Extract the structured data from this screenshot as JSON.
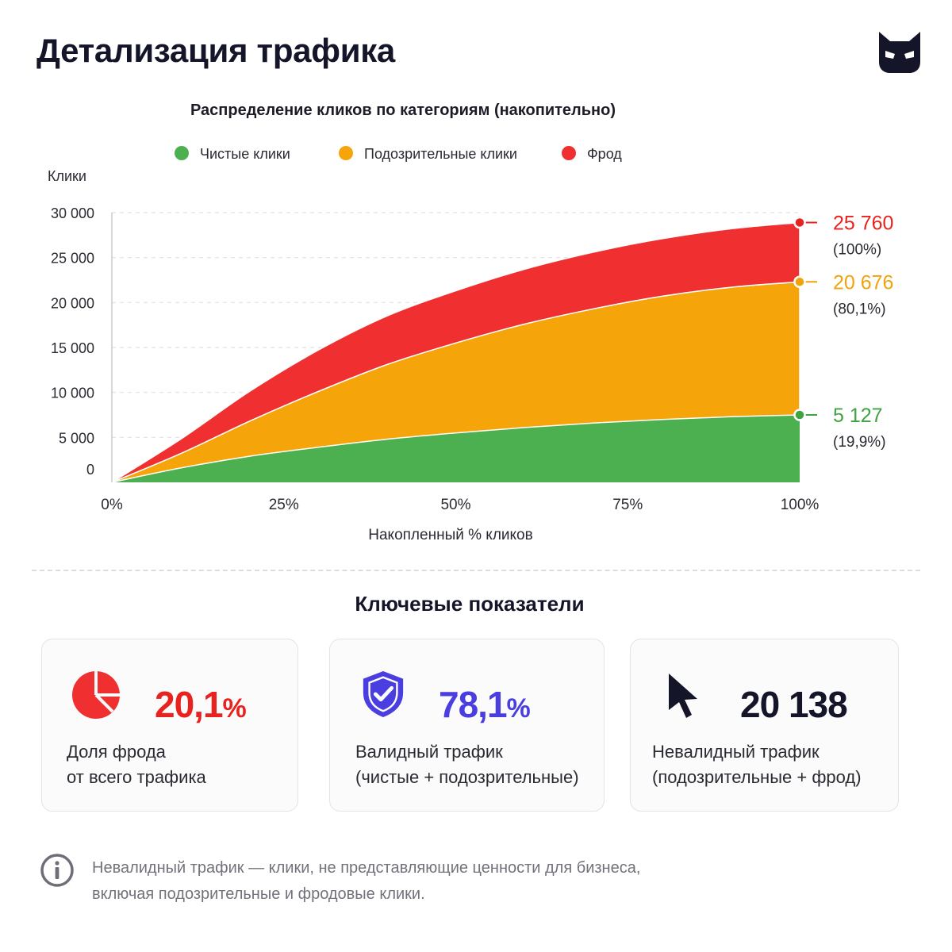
{
  "header": {
    "title": "Детализация трафика",
    "logo_icon": "owl-mask-icon"
  },
  "chart_data": {
    "type": "area",
    "stacked": true,
    "title": "Распределение кликов по категориям (накопительно)",
    "xlabel": "Накопленный % кликов",
    "ylabel": "Клики",
    "x": [
      0,
      10,
      20,
      30,
      40,
      50,
      60,
      70,
      80,
      90,
      100
    ],
    "x_ticks": [
      "0%",
      "25%",
      "50%",
      "75%",
      "100%"
    ],
    "x_tick_values": [
      0,
      25,
      50,
      75,
      100
    ],
    "y_ticks": [
      "0",
      "5 000",
      "10 000",
      "15 000",
      "20 000",
      "25 000",
      "30 000"
    ],
    "y_tick_values": [
      0,
      5000,
      10000,
      15000,
      20000,
      25000,
      30000
    ],
    "ylim": [
      0,
      30000
    ],
    "grid": true,
    "legend_position": "top",
    "series": [
      {
        "name": "Чистые клики",
        "color": "#4caf50",
        "values": [
          0,
          1600,
          2900,
          3900,
          4800,
          5500,
          6100,
          6600,
          7000,
          7300,
          7500
        ]
      },
      {
        "name": "Подозрительные клики",
        "color": "#f5a50a",
        "values": [
          0,
          1600,
          3900,
          6200,
          8300,
          10000,
          11500,
          12700,
          13700,
          14400,
          14800
        ]
      },
      {
        "name": "Фрод",
        "color": "#f03030",
        "values": [
          0,
          1600,
          3300,
          4600,
          5400,
          5800,
          6100,
          6300,
          6400,
          6500,
          6600
        ]
      }
    ],
    "annotations": [
      {
        "value": "25 760",
        "sub": "(100%)",
        "color": "#e8231f",
        "y": 28900
      },
      {
        "value": "20 676",
        "sub": "(80,1%)",
        "color": "#f0a30a",
        "y": 22300
      },
      {
        "value": "5 127",
        "sub": "(19,9%)",
        "color": "#3fa243",
        "y": 7500
      }
    ]
  },
  "kpi": {
    "title": "Ключевые показатели",
    "cards": [
      {
        "value": "20,1",
        "unit": "%",
        "color": "#e8231f",
        "line1": "Доля фрода",
        "line2": "от всего трафика",
        "icon": "pie-chart-icon"
      },
      {
        "value": "78,1",
        "unit": "%",
        "color": "#4b3ee0",
        "line1": "Валидный трафик",
        "line2": "(чистые + подозрительные)",
        "icon": "shield-check-icon"
      },
      {
        "value": "20 138",
        "unit": "",
        "color": "#15152a",
        "line1": "Невалидный трафик",
        "line2": "(подозрительные + фрод)",
        "icon": "cursor-icon"
      }
    ]
  },
  "footnote": {
    "icon": "info-icon",
    "line1": "Невалидный трафик — клики, не представляющие ценности для бизнеса,",
    "line2": "включая подозрительные и фродовые клики."
  }
}
